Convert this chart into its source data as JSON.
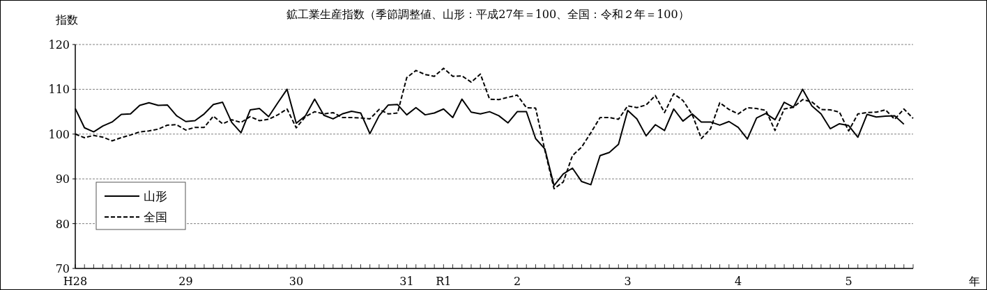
{
  "chart_data": {
    "type": "line",
    "title": "鉱工業生産指数（季節調整値、山形：平成27年＝100、全国：令和２年＝100）",
    "ylabel": "指数",
    "xlabel": "年",
    "categories": [
      "H28",
      null,
      null,
      null,
      null,
      null,
      null,
      null,
      null,
      null,
      null,
      null,
      "29",
      null,
      null,
      null,
      null,
      null,
      null,
      null,
      null,
      null,
      null,
      null,
      "30",
      null,
      null,
      null,
      null,
      null,
      null,
      null,
      null,
      null,
      null,
      null,
      "31",
      null,
      null,
      null,
      "R1",
      null,
      null,
      null,
      null,
      null,
      null,
      null,
      "2",
      null,
      null,
      null,
      null,
      null,
      null,
      null,
      null,
      null,
      null,
      null,
      "3",
      null,
      null,
      null,
      null,
      null,
      null,
      null,
      null,
      null,
      null,
      null,
      "4",
      null,
      null,
      null,
      null,
      null,
      null,
      null,
      null,
      null,
      null,
      null,
      "5",
      null,
      null,
      null,
      null,
      null,
      null,
      null
    ],
    "series": [
      {
        "name": "山形",
        "color": "#000000",
        "line_style": "solid",
        "values": [
          105.7,
          101.4,
          100.5,
          101.8,
          102.7,
          104.4,
          104.5,
          106.4,
          107.0,
          106.4,
          106.5,
          104.1,
          102.8,
          103.0,
          104.5,
          106.6,
          107.1,
          102.6,
          100.3,
          105.4,
          105.7,
          103.9,
          107.0,
          110.0,
          102.4,
          104.1,
          107.8,
          104.2,
          103.4,
          104.5,
          105.1,
          104.7,
          100.1,
          104.1,
          106.5,
          106.6,
          104.3,
          105.9,
          104.3,
          104.7,
          105.6,
          103.7,
          107.8,
          104.9,
          104.5,
          105.0,
          104.1,
          102.5,
          105.0,
          105.0,
          99.0,
          96.7,
          88.5,
          91.1,
          92.4,
          89.4,
          88.7,
          95.2,
          95.9,
          97.7,
          105.3,
          103.4,
          99.6,
          102.1,
          100.8,
          105.6,
          102.9,
          104.5,
          102.7,
          102.7,
          102.0,
          102.8,
          101.5,
          98.9,
          103.6,
          104.6,
          103.2,
          107.1,
          106.0,
          110.0,
          106.3,
          104.5,
          101.2,
          102.3,
          101.9,
          99.3,
          104.4,
          103.8,
          104.0,
          104.1,
          102.2,
          null
        ]
      },
      {
        "name": "全国",
        "color": "#000000",
        "line_style": "dashed",
        "values": [
          100.0,
          99.2,
          99.7,
          99.3,
          98.5,
          99.2,
          99.8,
          100.5,
          100.7,
          101.1,
          102.0,
          102.1,
          100.9,
          101.5,
          101.5,
          104.0,
          102.3,
          103.2,
          102.6,
          103.9,
          103.0,
          103.3,
          104.3,
          105.6,
          101.4,
          103.9,
          105.0,
          104.5,
          104.8,
          103.7,
          103.7,
          103.6,
          103.4,
          105.5,
          104.5,
          104.7,
          112.6,
          114.2,
          113.3,
          112.9,
          114.7,
          112.9,
          113.0,
          111.6,
          113.4,
          107.8,
          107.7,
          108.2,
          108.7,
          105.9,
          105.8,
          96.4,
          87.8,
          89.3,
          95.2,
          97.1,
          100.3,
          103.7,
          103.7,
          103.3,
          106.3,
          105.9,
          106.5,
          108.6,
          104.8,
          109.0,
          107.5,
          104.4,
          99.0,
          101.2,
          107.0,
          105.5,
          104.5,
          105.9,
          105.7,
          105.3,
          100.8,
          105.6,
          106.0,
          107.7,
          107.2,
          105.5,
          105.4,
          104.9,
          100.7,
          104.5,
          104.8,
          104.9,
          105.4,
          103.3,
          105.6,
          103.5
        ]
      }
    ],
    "ylim": [
      70,
      120
    ],
    "yticks": [
      70,
      80,
      90,
      100,
      110,
      120
    ],
    "grid": "y",
    "legend": "bottom left",
    "marker": "none"
  }
}
